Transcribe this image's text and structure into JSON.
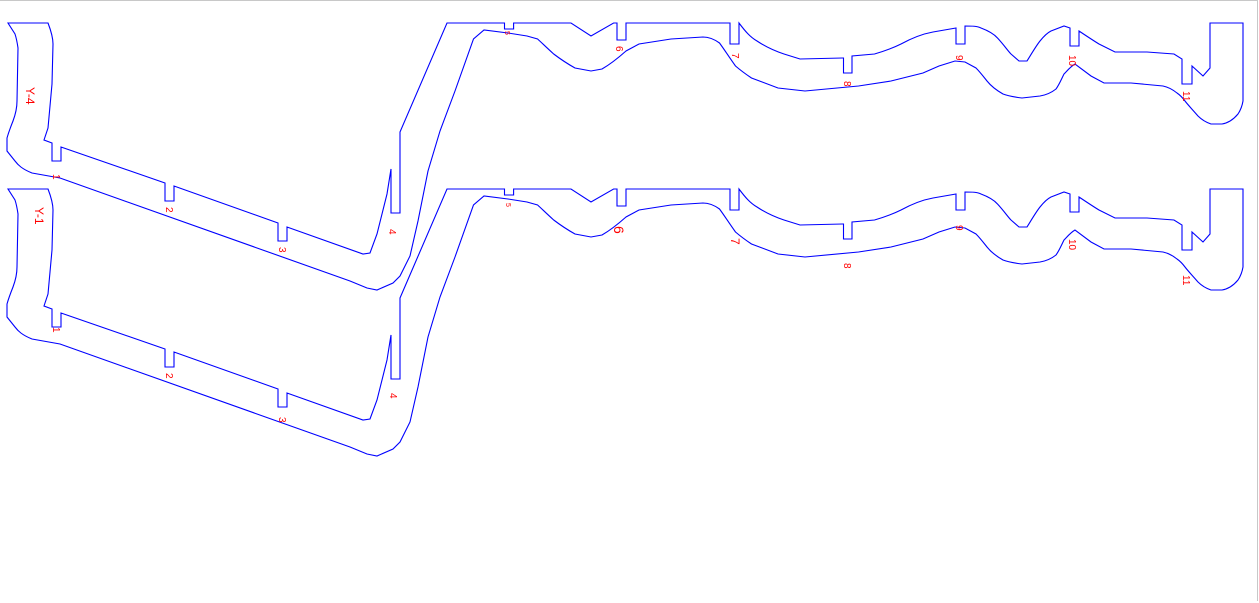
{
  "colors": {
    "outline": "#0000ff",
    "labels": "#ff0000",
    "background": "#ffffff"
  },
  "parts": [
    {
      "name": "Y-4",
      "marks": [
        "1",
        "2",
        "3",
        "4",
        "5",
        "6",
        "7",
        "8",
        "9",
        "10",
        "11"
      ]
    },
    {
      "name": "Y-1",
      "marks": [
        "1",
        "2",
        "3",
        "4",
        "5",
        "6",
        "7",
        "8",
        "9",
        "10",
        "11"
      ]
    }
  ]
}
